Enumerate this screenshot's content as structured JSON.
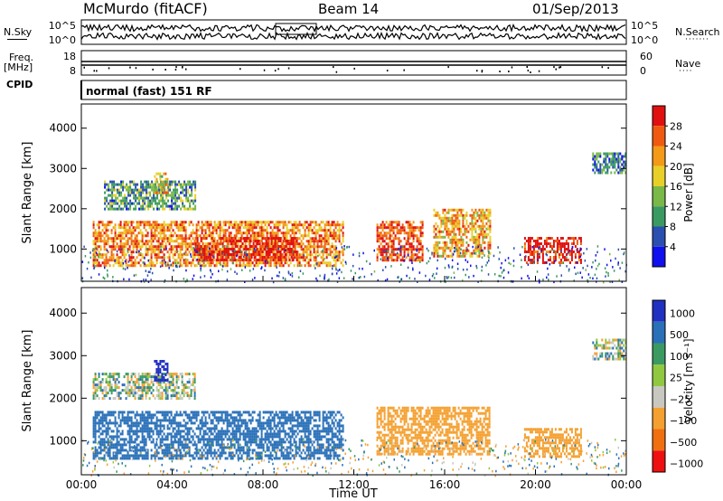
{
  "header": {
    "title": "McMurdo (fitACF)",
    "beam": "Beam 14",
    "date": "01/Sep/2013"
  },
  "side_labels": {
    "nsky": "N.Sky",
    "nsearch": "N.Search",
    "freq_line1": "Freq.",
    "freq_line2": "[MHz]",
    "nave": "Nave",
    "cpid": "CPID",
    "nsearch_dots": "·······",
    "nave_dots": "····"
  },
  "noise_panel": {
    "left_ticks": [
      "10^5",
      "10^0"
    ],
    "right_ticks": [
      "10^5",
      "10^0"
    ]
  },
  "freq_panel": {
    "left_ticks": [
      "18",
      "8"
    ],
    "right_ticks": [
      "60",
      "0"
    ]
  },
  "cpid_text": "normal (fast) 151 RF",
  "colors": {
    "power_scale": [
      "#1010ee",
      "#2b4fb0",
      "#3a9a62",
      "#7ab848",
      "#e8d028",
      "#f39a18",
      "#ef5a10",
      "#e01010"
    ],
    "velocity_scale": [
      "#ee1010",
      "#f07010",
      "#f4a030",
      "#c8c8c0",
      "#90c840",
      "#3a9a62",
      "#2a70b8",
      "#2030c0"
    ]
  },
  "chart_data": [
    {
      "type": "heatmap",
      "name": "power",
      "xlabel": "",
      "ylabel": "Slant Range [km]",
      "xlim_hours": [
        0,
        24
      ],
      "ylim_km": [
        200,
        4600
      ],
      "y_ticks": [
        "1000",
        "2000",
        "3000",
        "4000"
      ],
      "colorbar": {
        "label": "Power [dB]",
        "ticks": [
          "4",
          "8",
          "12",
          "16",
          "20",
          "24",
          "28"
        ],
        "range": [
          0,
          30
        ]
      },
      "echo_regions": [
        {
          "t0": 0.5,
          "t1": 11.5,
          "r0": 600,
          "r1": 1700,
          "value": 22
        },
        {
          "t0": 5.0,
          "t1": 9.5,
          "r0": 700,
          "r1": 1300,
          "value": 29
        },
        {
          "t0": 13.0,
          "t1": 15.0,
          "r0": 700,
          "r1": 1700,
          "value": 26
        },
        {
          "t0": 15.5,
          "t1": 18.0,
          "r0": 800,
          "r1": 2000,
          "value": 20
        },
        {
          "t0": 19.5,
          "t1": 22.0,
          "r0": 650,
          "r1": 1300,
          "value": 29
        },
        {
          "t0": 1.0,
          "t1": 5.0,
          "r0": 2000,
          "r1": 2700,
          "value": 10
        },
        {
          "t0": 3.2,
          "t1": 3.8,
          "r0": 2400,
          "r1": 2900,
          "value": 18
        },
        {
          "t0": 22.5,
          "t1": 24.0,
          "r0": 2900,
          "r1": 3400,
          "value": 8
        }
      ]
    },
    {
      "type": "heatmap",
      "name": "velocity",
      "xlabel": "Time UT",
      "ylabel": "Slant Range [km]",
      "xlim_hours": [
        0,
        24
      ],
      "ylim_km": [
        200,
        4600
      ],
      "x_ticks": [
        "00:00",
        "04:00",
        "08:00",
        "12:00",
        "16:00",
        "20:00",
        "00:00"
      ],
      "y_ticks": [
        "1000",
        "2000",
        "3000",
        "4000"
      ],
      "colorbar": {
        "label": "Velocity [m s⁻¹]",
        "ticks": [
          "1000",
          "500",
          "100",
          "25",
          "−25",
          "−100",
          "−500",
          "−1000"
        ]
      },
      "echo_regions": [
        {
          "t0": 0.5,
          "t1": 11.5,
          "r0": 600,
          "r1": 1700,
          "value": 250
        },
        {
          "t0": 13.0,
          "t1": 18.0,
          "r0": 700,
          "r1": 1800,
          "value": -300
        },
        {
          "t0": 19.5,
          "t1": 22.0,
          "r0": 650,
          "r1": 1300,
          "value": -300
        },
        {
          "t0": 0.5,
          "t1": 5.0,
          "r0": 2000,
          "r1": 2600,
          "value": 0
        },
        {
          "t0": 3.2,
          "t1": 3.8,
          "r0": 2400,
          "r1": 2900,
          "value": 800
        },
        {
          "t0": 22.5,
          "t1": 24.0,
          "r0": 2900,
          "r1": 3400,
          "value": 0
        }
      ]
    }
  ]
}
